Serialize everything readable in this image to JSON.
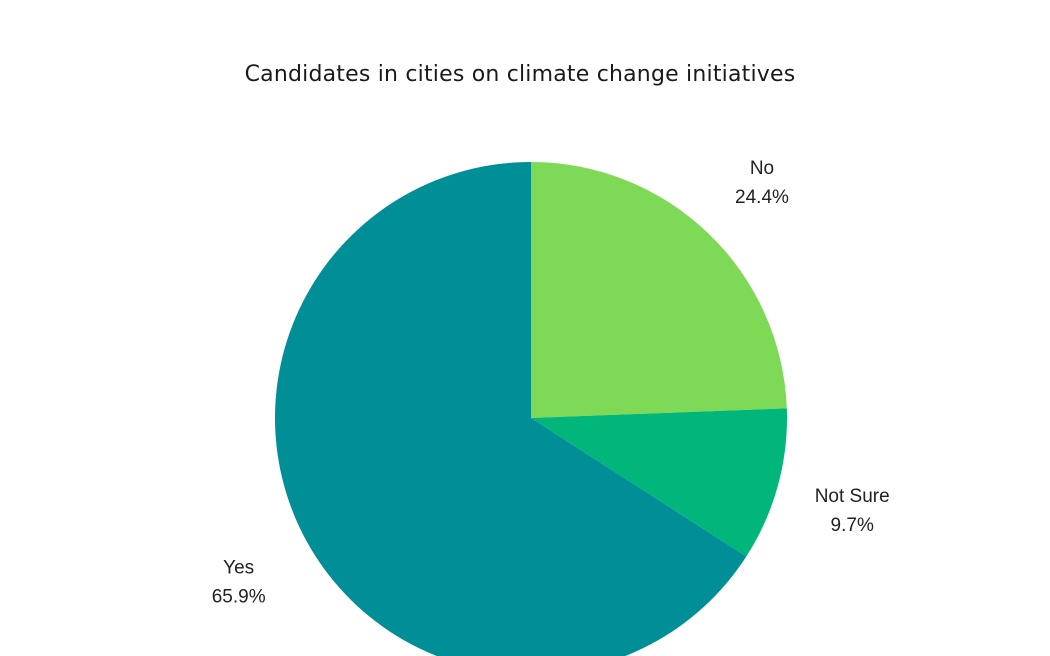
{
  "chart_data": {
    "type": "pie",
    "title": "Candidates in cities on climate change initiatives",
    "slices": [
      {
        "label": "No",
        "value": 24.4,
        "value_label": "24.4%",
        "color": "#7ed957"
      },
      {
        "label": "Not Sure",
        "value": 9.7,
        "value_label": "9.7%",
        "color": "#00b67a"
      },
      {
        "label": "Yes",
        "value": 65.9,
        "value_label": "65.9%",
        "color": "#008f96"
      }
    ],
    "start_angle": "12 o'clock",
    "direction": "clockwise",
    "legend": "none"
  }
}
